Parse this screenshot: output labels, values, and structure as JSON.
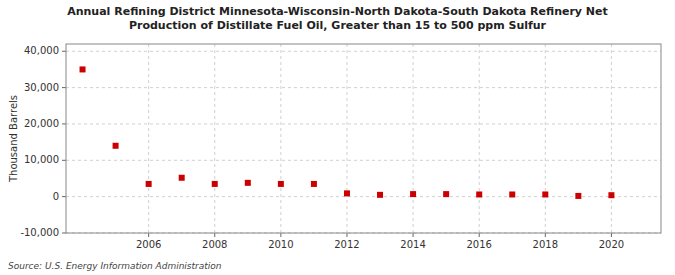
{
  "chart_data": {
    "type": "scatter",
    "title": "Annual Refining District Minnesota-Wisconsin-North Dakota-South Dakota Refinery Net\nProduction of Distillate Fuel Oil, Greater than 15 to 500 ppm Sulfur",
    "ylabel": "Thousand Barrels",
    "source": "Source: U.S. Energy Information Administration",
    "x": [
      2004,
      2005,
      2006,
      2007,
      2008,
      2009,
      2010,
      2011,
      2012,
      2013,
      2014,
      2015,
      2016,
      2017,
      2018,
      2019,
      2020
    ],
    "values": [
      35000,
      14000,
      3500,
      5200,
      3500,
      3800,
      3500,
      3500,
      900,
      500,
      700,
      700,
      600,
      600,
      600,
      200,
      400
    ],
    "color": "#cc0000",
    "marker": "square",
    "xlim": [
      2003.5,
      2021.5
    ],
    "xticks": [
      2006,
      2008,
      2010,
      2012,
      2014,
      2016,
      2018,
      2020
    ],
    "ylim": [
      -10000,
      42000
    ],
    "yticks": [
      {
        "value": -10000,
        "label": "-10,000"
      },
      0,
      {
        "value": 10000,
        "label": "10,000"
      },
      {
        "value": 20000,
        "label": "20,000"
      },
      {
        "value": 30000,
        "label": "30,000"
      },
      {
        "value": 40000,
        "label": "40,000"
      }
    ],
    "grid": true
  }
}
